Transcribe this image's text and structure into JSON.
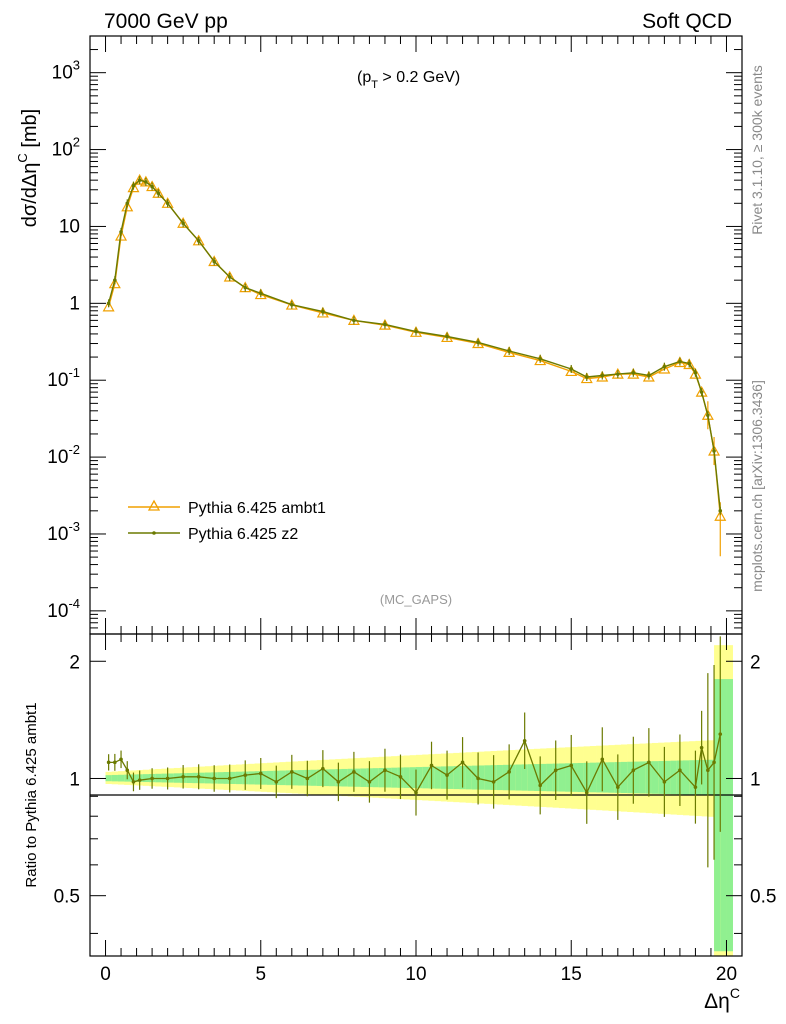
{
  "header": {
    "left": "7000 GeV pp",
    "right": "Soft QCD"
  },
  "side_labels": {
    "rivet": "Rivet 3.1.10, ≥ 300k events",
    "mcplots": "mcplots.cern.ch [arXiv:1306.3436]"
  },
  "annotations": {
    "cut_prefix": "(p",
    "cut_sub": "T",
    "cut_suffix": " > 0.2 GeV)",
    "analysis": "(MC_GAPS)"
  },
  "colors": {
    "ambt1": "#f0a000",
    "z2": "#6b7a00",
    "band_yellow": "#ffff90",
    "band_green": "#90f090"
  },
  "chart_data": [
    {
      "type": "line",
      "title": "",
      "ylabel": "dσ/dΔη^C [mb]",
      "xlabel": "",
      "yscale": "log",
      "xlim": [
        -0.5,
        20.5
      ],
      "ylim": [
        5e-05,
        3000
      ],
      "legend_position": "middle-left",
      "y_tick_labels": [
        "10^-4",
        "10^-3",
        "10^-2",
        "10^-1",
        "1",
        "10",
        "10^2",
        "10^3"
      ],
      "series": [
        {
          "name": "Pythia 6.425 ambt1",
          "marker": "open-triangle",
          "x": [
            0.1,
            0.3,
            0.5,
            0.7,
            0.9,
            1.1,
            1.3,
            1.5,
            1.7,
            2.0,
            2.5,
            3.0,
            3.5,
            4.0,
            4.5,
            5.0,
            6.0,
            7.0,
            8.0,
            9.0,
            10.0,
            11.0,
            12.0,
            13.0,
            14.0,
            15.0,
            15.5,
            16.0,
            16.5,
            17.0,
            17.5,
            18.0,
            18.5,
            18.8,
            19.0,
            19.2,
            19.4,
            19.6,
            19.8
          ],
          "y": [
            0.9,
            1.8,
            7.5,
            18,
            32,
            40,
            38,
            33,
            27,
            20,
            11,
            6.5,
            3.5,
            2.2,
            1.6,
            1.3,
            0.95,
            0.75,
            0.6,
            0.52,
            0.42,
            0.36,
            0.3,
            0.23,
            0.18,
            0.13,
            0.105,
            0.11,
            0.12,
            0.12,
            0.11,
            0.14,
            0.17,
            0.16,
            0.12,
            0.07,
            0.035,
            0.012,
            0.0017
          ]
        },
        {
          "name": "Pythia 6.425 z2",
          "marker": "dot",
          "x": [
            0.1,
            0.3,
            0.5,
            0.7,
            0.9,
            1.1,
            1.3,
            1.5,
            1.7,
            2.0,
            2.5,
            3.0,
            3.5,
            4.0,
            4.5,
            5.0,
            6.0,
            7.0,
            8.0,
            9.0,
            10.0,
            11.0,
            12.0,
            13.0,
            14.0,
            15.0,
            15.5,
            16.0,
            16.5,
            17.0,
            17.5,
            18.0,
            18.5,
            18.8,
            19.0,
            19.2,
            19.4,
            19.6,
            19.8
          ],
          "y": [
            1.0,
            2.0,
            8.5,
            20,
            34,
            40,
            38,
            33,
            27,
            20,
            11,
            6.5,
            3.5,
            2.2,
            1.6,
            1.35,
            0.96,
            0.78,
            0.6,
            0.53,
            0.43,
            0.37,
            0.31,
            0.24,
            0.19,
            0.14,
            0.11,
            0.115,
            0.12,
            0.125,
            0.115,
            0.15,
            0.175,
            0.165,
            0.125,
            0.07,
            0.035,
            0.012,
            0.002
          ]
        }
      ]
    },
    {
      "type": "line",
      "title": "",
      "ylabel": "Ratio to Pythia 6.425 ambt1",
      "xlabel": "Δη^C",
      "xlim": [
        -0.5,
        20.5
      ],
      "ylim": [
        0.35,
        2.35
      ],
      "x_ticks": [
        0,
        5,
        10,
        15,
        20
      ],
      "y_ticks": [
        0.5,
        1,
        2
      ],
      "reference_line": 1,
      "series": [
        {
          "name": "Pythia 6.425 z2",
          "x": [
            0.1,
            0.3,
            0.5,
            0.7,
            0.9,
            1.1,
            1.5,
            2.0,
            2.5,
            3.0,
            3.5,
            4.0,
            4.5,
            5.0,
            5.5,
            6.0,
            6.5,
            7.0,
            7.5,
            8.0,
            8.5,
            9.0,
            9.5,
            10.0,
            10.5,
            11.0,
            11.5,
            12.0,
            12.5,
            13.0,
            13.5,
            14.0,
            14.5,
            15.0,
            15.5,
            16.0,
            16.5,
            17.0,
            17.5,
            18.0,
            18.5,
            19.0,
            19.2,
            19.4,
            19.6,
            19.8
          ],
          "y": [
            1.1,
            1.1,
            1.12,
            1.05,
            0.98,
            0.99,
            1.0,
            1.0,
            1.01,
            1.01,
            1.0,
            1.0,
            1.02,
            1.03,
            0.98,
            1.04,
            1.0,
            1.06,
            0.98,
            1.04,
            0.98,
            1.05,
            1.01,
            0.92,
            1.08,
            1.02,
            1.1,
            1.0,
            0.98,
            1.04,
            1.25,
            0.96,
            1.05,
            1.08,
            0.92,
            1.12,
            0.95,
            1.05,
            1.1,
            0.98,
            1.05,
            0.95,
            1.2,
            1.05,
            1.1,
            1.3
          ]
        }
      ]
    }
  ],
  "legend": {
    "items": [
      {
        "label": "Pythia 6.425 ambt1"
      },
      {
        "label": "Pythia 6.425 z2"
      }
    ]
  }
}
